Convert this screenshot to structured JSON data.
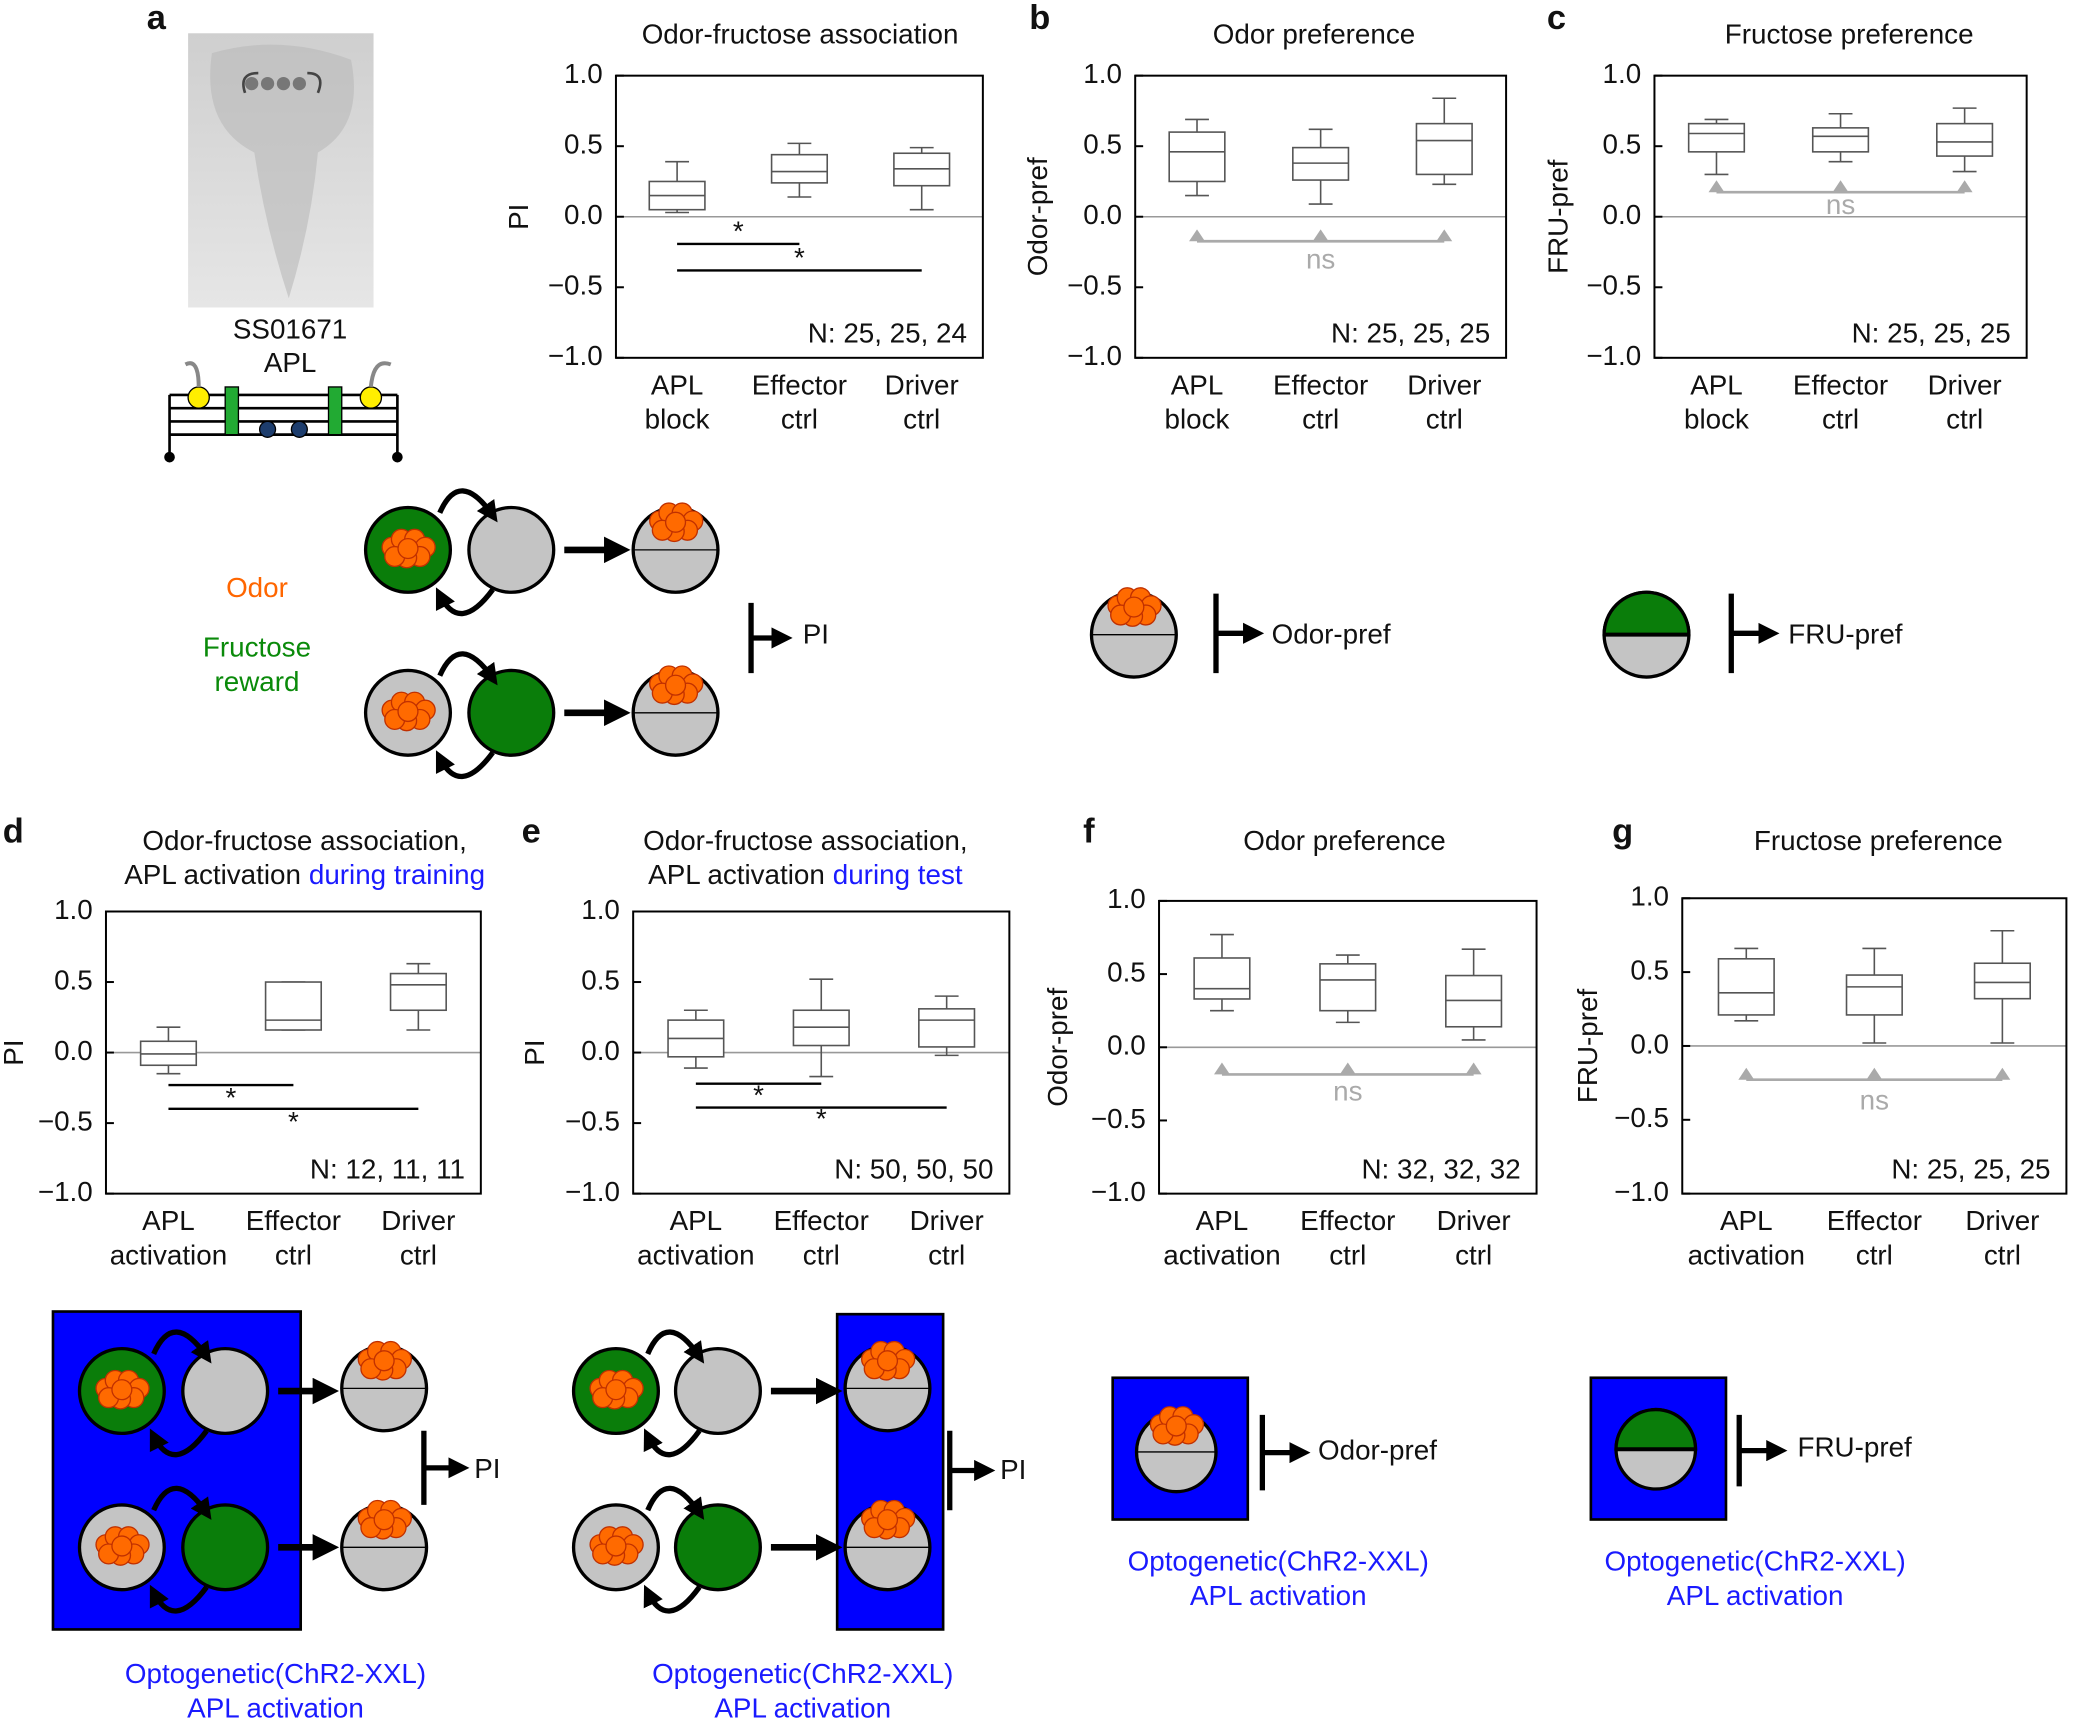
{
  "panel_labels": [
    "a",
    "b",
    "c",
    "d",
    "e",
    "f",
    "g"
  ],
  "image_panel": {
    "line_name": "SS01671",
    "neuron": "APL"
  },
  "legend": {
    "odor": "Odor",
    "fructose": [
      "Fructose",
      "reward"
    ]
  },
  "schematics": {
    "a": {
      "readout": "PI"
    },
    "b": {
      "readout": "Odor-pref"
    },
    "c": {
      "readout": "FRU-pref"
    },
    "d": {
      "readout": "PI",
      "note": [
        "Optogenetic(ChR2-XXL)",
        "APL activation"
      ]
    },
    "e": {
      "readout": "PI",
      "note": [
        "Optogenetic(ChR2-XXL)",
        "APL activation"
      ]
    },
    "f": {
      "readout": "Odor-pref",
      "note": [
        "Optogenetic(ChR2-XXL)",
        "APL activation"
      ]
    },
    "g": {
      "readout": "FRU-pref",
      "note": [
        "Optogenetic(ChR2-XXL)",
        "APL activation"
      ]
    }
  },
  "chart_data": [
    {
      "type": "box",
      "title": "Odor-fructose association",
      "ylabel": "PI",
      "categories": [
        [
          "APL",
          "block"
        ],
        [
          "Effector",
          "ctrl"
        ],
        [
          "Driver",
          "ctrl"
        ]
      ],
      "boxes": [
        {
          "whislo": 0.03,
          "q1": 0.05,
          "med": 0.15,
          "q3": 0.25,
          "whishi": 0.39
        },
        {
          "whislo": 0.14,
          "q1": 0.24,
          "med": 0.32,
          "q3": 0.44,
          "whishi": 0.52
        },
        {
          "whislo": 0.05,
          "q1": 0.22,
          "med": 0.34,
          "q3": 0.45,
          "whishi": 0.49
        }
      ],
      "ylim": [
        -1,
        1
      ],
      "yticks": [
        {
          "value": -1,
          "label": "−1.0"
        },
        {
          "value": -0.5,
          "label": "−0.5"
        },
        {
          "value": 0,
          "label": "0.0"
        },
        0.5,
        {
          "value": 1,
          "label": "1.0"
        }
      ],
      "significance": [
        "*",
        "*"
      ],
      "annotation": "N: 25, 25, 24"
    },
    {
      "type": "box",
      "title": "Odor preference",
      "ylabel": "Odor-pref",
      "categories": [
        [
          "APL",
          "block"
        ],
        [
          "Effector",
          "ctrl"
        ],
        [
          "Driver",
          "ctrl"
        ]
      ],
      "boxes": [
        {
          "whislo": 0.15,
          "q1": 0.25,
          "med": 0.46,
          "q3": 0.6,
          "whishi": 0.69
        },
        {
          "whislo": 0.09,
          "q1": 0.26,
          "med": 0.38,
          "q3": 0.49,
          "whishi": 0.62
        },
        {
          "whislo": 0.23,
          "q1": 0.3,
          "med": 0.54,
          "q3": 0.66,
          "whishi": 0.84
        }
      ],
      "ylim": [
        -1,
        1
      ],
      "yticks": [
        {
          "value": -1,
          "label": "−1.0"
        },
        {
          "value": -0.5,
          "label": "−0.5"
        },
        {
          "value": 0,
          "label": "0.0"
        },
        0.5,
        {
          "value": 1,
          "label": "1.0"
        }
      ],
      "significance": [
        "ns"
      ],
      "annotation": "N: 25, 25, 25"
    },
    {
      "type": "box",
      "title": "Fructose preference",
      "ylabel": "FRU-pref",
      "categories": [
        [
          "APL",
          "block"
        ],
        [
          "Effector",
          "ctrl"
        ],
        [
          "Driver",
          "ctrl"
        ]
      ],
      "boxes": [
        {
          "whislo": 0.3,
          "q1": 0.46,
          "med": 0.59,
          "q3": 0.66,
          "whishi": 0.69
        },
        {
          "whislo": 0.39,
          "q1": 0.46,
          "med": 0.57,
          "q3": 0.63,
          "whishi": 0.73
        },
        {
          "whislo": 0.32,
          "q1": 0.43,
          "med": 0.53,
          "q3": 0.66,
          "whishi": 0.77
        }
      ],
      "ylim": [
        -1,
        1
      ],
      "yticks": [
        {
          "value": -1,
          "label": "−1.0"
        },
        {
          "value": -0.5,
          "label": "−0.5"
        },
        {
          "value": 0,
          "label": "0.0"
        },
        0.5,
        {
          "value": 1,
          "label": "1.0"
        }
      ],
      "significance": [
        "ns"
      ],
      "annotation": "N: 25, 25, 25"
    },
    {
      "type": "box",
      "title": "Odor-fructose association,",
      "subtitle": "APL activation",
      "subtitle_highlight": "during training",
      "ylabel": "PI",
      "categories": [
        [
          "APL",
          "activation"
        ],
        [
          "Effector",
          "ctrl"
        ],
        [
          "Driver",
          "ctrl"
        ]
      ],
      "boxes": [
        {
          "whislo": -0.15,
          "q1": -0.09,
          "med": -0.01,
          "q3": 0.08,
          "whishi": 0.18
        },
        {
          "whislo": 0.16,
          "q1": 0.16,
          "med": 0.23,
          "q3": 0.5,
          "whishi": 0.5
        },
        {
          "whislo": 0.16,
          "q1": 0.3,
          "med": 0.48,
          "q3": 0.56,
          "whishi": 0.63
        }
      ],
      "ylim": [
        -1,
        1
      ],
      "yticks": [
        {
          "value": -1,
          "label": "−1.0"
        },
        {
          "value": -0.5,
          "label": "−0.5"
        },
        {
          "value": 0,
          "label": "0.0"
        },
        0.5,
        {
          "value": 1,
          "label": "1.0"
        }
      ],
      "significance": [
        "*",
        "*"
      ],
      "annotation": "N: 12, 11, 11"
    },
    {
      "type": "box",
      "title": "Odor-fructose association,",
      "subtitle": "APL activation",
      "subtitle_highlight": "during test",
      "ylabel": "PI",
      "categories": [
        [
          "APL",
          "activation"
        ],
        [
          "Effector",
          "ctrl"
        ],
        [
          "Driver",
          "ctrl"
        ]
      ],
      "boxes": [
        {
          "whislo": -0.11,
          "q1": -0.03,
          "med": 0.1,
          "q3": 0.23,
          "whishi": 0.3
        },
        {
          "whislo": -0.17,
          "q1": 0.05,
          "med": 0.18,
          "q3": 0.3,
          "whishi": 0.52
        },
        {
          "whislo": -0.02,
          "q1": 0.04,
          "med": 0.23,
          "q3": 0.31,
          "whishi": 0.4
        }
      ],
      "ylim": [
        -1,
        1
      ],
      "yticks": [
        {
          "value": -1,
          "label": "−1.0"
        },
        {
          "value": -0.5,
          "label": "−0.5"
        },
        {
          "value": 0,
          "label": "0.0"
        },
        0.5,
        {
          "value": 1,
          "label": "1.0"
        }
      ],
      "significance": [
        "*",
        "*"
      ],
      "annotation": "N: 50, 50, 50"
    },
    {
      "type": "box",
      "title": "Odor preference",
      "ylabel": "Odor-pref",
      "categories": [
        [
          "APL",
          "activation"
        ],
        [
          "Effector",
          "ctrl"
        ],
        [
          "Driver",
          "ctrl"
        ]
      ],
      "boxes": [
        {
          "whislo": 0.25,
          "q1": 0.33,
          "med": 0.4,
          "q3": 0.61,
          "whishi": 0.77
        },
        {
          "whislo": 0.17,
          "q1": 0.25,
          "med": 0.46,
          "q3": 0.57,
          "whishi": 0.63
        },
        {
          "whislo": 0.05,
          "q1": 0.14,
          "med": 0.32,
          "q3": 0.49,
          "whishi": 0.67
        }
      ],
      "ylim": [
        -1,
        1
      ],
      "yticks": [
        {
          "value": -1,
          "label": "−1.0"
        },
        {
          "value": -0.5,
          "label": "−0.5"
        },
        {
          "value": 0,
          "label": "0.0"
        },
        0.5,
        {
          "value": 1,
          "label": "1.0"
        }
      ],
      "significance": [
        "ns"
      ],
      "annotation": "N: 32, 32, 32"
    },
    {
      "type": "box",
      "title": "Fructose preference",
      "ylabel": "FRU-pref",
      "categories": [
        [
          "APL",
          "activation"
        ],
        [
          "Effector",
          "ctrl"
        ],
        [
          "Driver",
          "ctrl"
        ]
      ],
      "boxes": [
        {
          "whislo": 0.17,
          "q1": 0.21,
          "med": 0.36,
          "q3": 0.59,
          "whishi": 0.66
        },
        {
          "whislo": 0.02,
          "q1": 0.21,
          "med": 0.4,
          "q3": 0.48,
          "whishi": 0.66
        },
        {
          "whislo": 0.02,
          "q1": 0.32,
          "med": 0.43,
          "q3": 0.56,
          "whishi": 0.78
        }
      ],
      "ylim": [
        -1,
        1
      ],
      "yticks": [
        {
          "value": -1,
          "label": "−1.0"
        },
        {
          "value": -0.5,
          "label": "−0.5"
        },
        {
          "value": 0,
          "label": "0.0"
        },
        0.5,
        {
          "value": 1,
          "label": "1.0"
        }
      ],
      "significance": [
        "ns"
      ],
      "annotation": "N: 25, 25, 25"
    }
  ]
}
